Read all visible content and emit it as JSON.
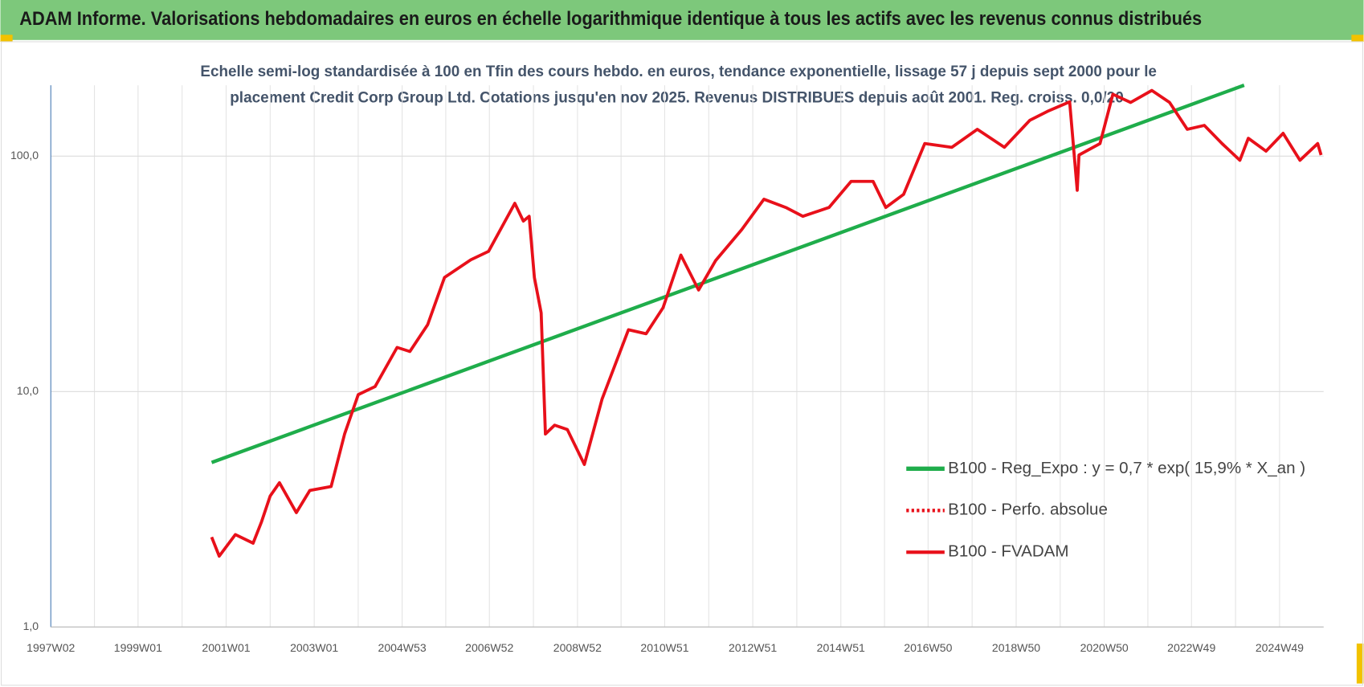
{
  "chart_data": {
    "type": "line",
    "title": "ADAM Informe. Valorisations hebdomadaires en euros en échelle logarithmique identique à tous les actifs avec les revenus connus distribués",
    "subtitle": [
      "Echelle semi-log standardisée à 100 en Tfin des cours hebdo. en euros, tendance exponentielle, lissage 57 j depuis sept 2000 pour le",
      "placement Credit Corp Group Ltd. Cotations jusqu'en nov 2025. Revenus DISTRIBUES depuis août 2001. Reg. croiss. 0,0/20"
    ],
    "log_y": true,
    "grid": true,
    "xlim": [
      "1997W02",
      "2025W49"
    ],
    "xticks": [
      "1997W02",
      "1999W01",
      "2001W01",
      "2003W01",
      "2004W53",
      "2006W52",
      "2008W52",
      "2010W51",
      "2012W51",
      "2014W51",
      "2016W50",
      "2018W50",
      "2020W50",
      "2022W49",
      "2024W49"
    ],
    "ylim": [
      1,
      200
    ],
    "yticks": [
      {
        "value": 1,
        "label": "1,0"
      },
      {
        "value": 10,
        "label": "10,0"
      },
      {
        "value": 100,
        "label": "100,0"
      }
    ],
    "legend": "lower-right",
    "series": [
      {
        "name": "B100 - Reg_Expo : y = 0,7 * exp( 15,9% *  X_an )",
        "color": "#1fad4b",
        "x": [
          "2000W36",
          "2024W07"
        ],
        "values": [
          5.0,
          200
        ]
      },
      {
        "name": "B100 - Perfo. absolue",
        "color": "#e8101a",
        "dash": "dotted"
      },
      {
        "name": "B100 - FVADAM",
        "color": "#e8101a",
        "x": [
          "2000W36",
          "2000W45",
          "2001W12",
          "2001W33",
          "2001W43",
          "2002W01",
          "2002W12",
          "2002W32",
          "2002W48",
          "2003W21",
          "2003W37",
          "2004W01",
          "2004W21",
          "2004W47",
          "2005W10",
          "2005W31",
          "2005W51",
          "2006W30",
          "2006W51",
          "2007W30",
          "2007W40",
          "2007W47",
          "2008W01",
          "2008W09",
          "2008W14",
          "2008W25",
          "2008W40",
          "2009W08",
          "2009W29",
          "2010W08",
          "2010W29",
          "2010W49",
          "2011W18",
          "2011W39",
          "2012W07",
          "2012W38",
          "2013W12",
          "2013W38",
          "2014W06",
          "2014W37",
          "2015W11",
          "2015W37",
          "2015W52",
          "2016W21",
          "2016W46",
          "2017W26",
          "2018W04",
          "2018W36",
          "2019W14",
          "2019W35",
          "2020W09",
          "2020W18",
          "2020W20",
          "2020W45",
          "2021W08",
          "2021W29",
          "2022W02",
          "2022W23",
          "2022W44",
          "2023W12",
          "2023W33",
          "2024W02",
          "2024W12",
          "2024W33",
          "2025W01",
          "2025W21",
          "2025W42",
          "2025W46"
        ],
        "values": [
          2.41,
          2.0,
          2.47,
          2.27,
          2.8,
          3.6,
          4.1,
          3.06,
          3.8,
          3.95,
          6.6,
          9.7,
          10.5,
          15.4,
          14.8,
          19.2,
          30.5,
          36.3,
          39.4,
          63,
          53,
          55.5,
          30.5,
          21.6,
          6.6,
          7.2,
          6.9,
          4.9,
          9.3,
          18.3,
          17.6,
          22.7,
          38,
          27,
          36,
          48.8,
          65.6,
          60.5,
          55.5,
          60.5,
          78.1,
          78.1,
          60.5,
          68.8,
          113,
          109,
          130,
          109,
          142,
          155,
          170,
          71.6,
          101,
          113,
          183,
          169,
          190,
          169,
          130,
          135,
          113,
          96,
          119,
          105,
          125,
          96,
          113,
          101
        ]
      }
    ]
  }
}
